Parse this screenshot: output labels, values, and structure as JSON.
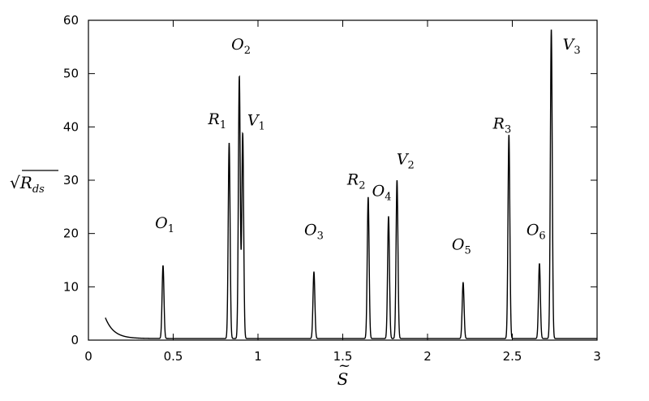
{
  "chart_data": {
    "type": "line",
    "title": "",
    "xlabel": "S",
    "xlabel_accent": "~",
    "ylabel": {
      "prefix": "√",
      "symbol": "R",
      "subscript": "ds"
    },
    "xlim": [
      0,
      3
    ],
    "ylim": [
      0,
      60
    ],
    "xticks": [
      0,
      0.5,
      1,
      1.5,
      2,
      2.5,
      3
    ],
    "xtick_labels": [
      "0",
      "0.5",
      "1",
      "1.5",
      "2",
      "2.5",
      "3"
    ],
    "yticks": [
      0,
      10,
      20,
      30,
      40,
      50,
      60
    ],
    "ytick_labels": [
      "0",
      "10",
      "20",
      "30",
      "40",
      "50",
      "60"
    ],
    "grid": false,
    "legend": "none",
    "line_color": "#000000",
    "baseline": {
      "x_start": 0.1,
      "y_start": 4.2,
      "decay": 0.05,
      "floor": 0.3
    },
    "peaks": [
      {
        "label": "O",
        "sub": "1",
        "x": 0.44,
        "y": 14.0
      },
      {
        "label": "R",
        "sub": "1",
        "x": 0.83,
        "y": 37.0
      },
      {
        "label": "O",
        "sub": "2",
        "x": 0.89,
        "y": 49.5
      },
      {
        "label": "V",
        "sub": "1",
        "x": 0.91,
        "y": 38.8
      },
      {
        "label": "O",
        "sub": "3",
        "x": 1.33,
        "y": 12.8
      },
      {
        "label": "R",
        "sub": "2",
        "x": 1.65,
        "y": 26.8
      },
      {
        "label": "O",
        "sub": "4",
        "x": 1.77,
        "y": 23.2
      },
      {
        "label": "V",
        "sub": "2",
        "x": 1.82,
        "y": 30.0
      },
      {
        "label": "O",
        "sub": "5",
        "x": 2.21,
        "y": 10.8
      },
      {
        "label": "R",
        "sub": "3",
        "x": 2.48,
        "y": 38.5
      },
      {
        "label": "O",
        "sub": "6",
        "x": 2.66,
        "y": 14.4
      },
      {
        "label": "V",
        "sub": "3",
        "x": 2.73,
        "y": 58.3
      }
    ],
    "peak_label_positions": [
      {
        "x": 0.45,
        "y": 21
      },
      {
        "x": 0.76,
        "y": 40.5
      },
      {
        "x": 0.9,
        "y": 54.5
      },
      {
        "x": 0.99,
        "y": 40.3
      },
      {
        "x": 1.33,
        "y": 19.7
      },
      {
        "x": 1.58,
        "y": 29.2
      },
      {
        "x": 1.73,
        "y": 27.0
      },
      {
        "x": 1.87,
        "y": 33.0
      },
      {
        "x": 2.2,
        "y": 17.0
      },
      {
        "x": 2.44,
        "y": 39.7
      },
      {
        "x": 2.64,
        "y": 19.7
      },
      {
        "x": 2.85,
        "y": 54.5
      }
    ]
  }
}
